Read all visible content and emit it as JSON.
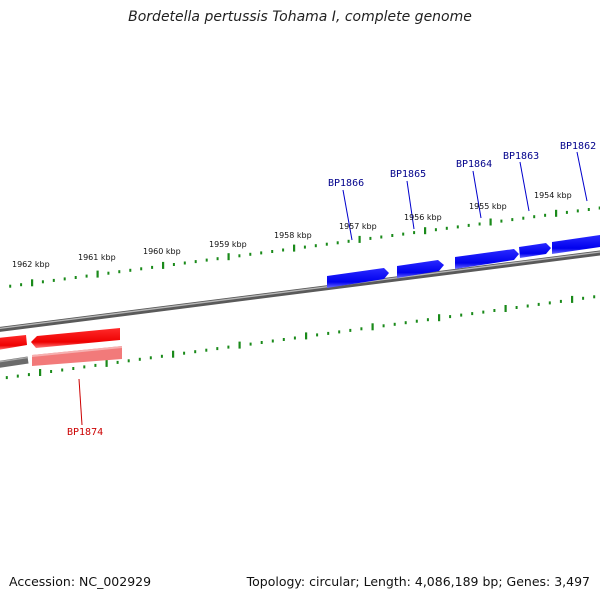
{
  "title": "Bordetella pertussis Tohama I, complete genome",
  "footer": {
    "accession": "Accession: NC_002929",
    "summary": "Topology: circular; Length: 4,086,189 bp; Genes: 3,497"
  },
  "colors": {
    "tick": "#1a8a1a",
    "backbone": "#7a7a7a",
    "forward_gene": "#0000ee",
    "reverse_gene": "#ee0000",
    "forward_label": "#00008b",
    "reverse_label": "#cc0000"
  },
  "kbp_labels": [
    "1962 kbp",
    "1961 kbp",
    "1960 kbp",
    "1959 kbp",
    "1958 kbp",
    "1957 kbp",
    "1956 kbp",
    "1955 kbp",
    "1954 kbp"
  ],
  "genes": [
    {
      "name": "BP1866",
      "strand": "forward"
    },
    {
      "name": "BP1865",
      "strand": "forward"
    },
    {
      "name": "BP1864",
      "strand": "forward"
    },
    {
      "name": "BP1863",
      "strand": "forward"
    },
    {
      "name": "BP1862",
      "strand": "forward"
    },
    {
      "name": "BP1874",
      "strand": "reverse"
    }
  ]
}
